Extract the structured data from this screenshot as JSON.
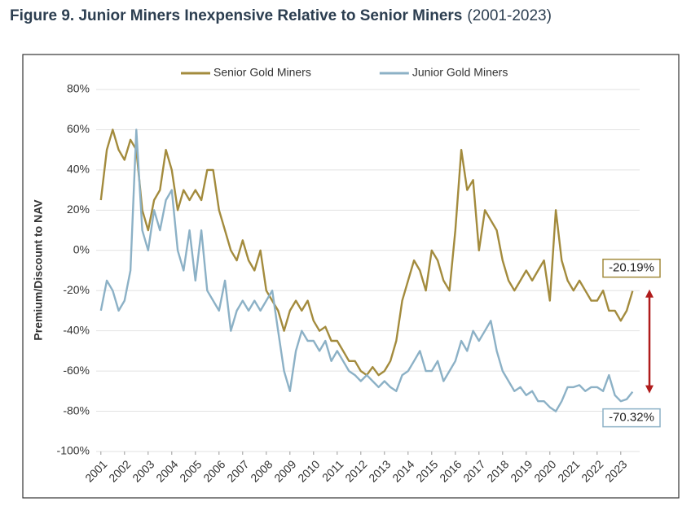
{
  "chart_data": {
    "type": "line",
    "title": "Figure 9. Junior Miners Inexpensive Relative to Senior Miners",
    "subtitle": "(2001-2023)",
    "y_label": "Premium/Discount to NAV",
    "x": [
      2001,
      2001.25,
      2001.5,
      2001.75,
      2002,
      2002.25,
      2002.5,
      2002.75,
      2003,
      2003.25,
      2003.5,
      2003.75,
      2004,
      2004.25,
      2004.5,
      2004.75,
      2005,
      2005.25,
      2005.5,
      2005.75,
      2006,
      2006.25,
      2006.5,
      2006.75,
      2007,
      2007.25,
      2007.5,
      2007.75,
      2008,
      2008.25,
      2008.5,
      2008.75,
      2009,
      2009.25,
      2009.5,
      2009.75,
      2010,
      2010.25,
      2010.5,
      2010.75,
      2011,
      2011.25,
      2011.5,
      2011.75,
      2012,
      2012.25,
      2012.5,
      2012.75,
      2013,
      2013.25,
      2013.5,
      2013.75,
      2014,
      2014.25,
      2014.5,
      2014.75,
      2015,
      2015.25,
      2015.5,
      2015.75,
      2016,
      2016.25,
      2016.5,
      2016.75,
      2017,
      2017.25,
      2017.5,
      2017.75,
      2018,
      2018.25,
      2018.5,
      2018.75,
      2019,
      2019.25,
      2019.5,
      2019.75,
      2020,
      2020.25,
      2020.5,
      2020.75,
      2021,
      2021.25,
      2021.5,
      2021.75,
      2022,
      2022.25,
      2022.5,
      2022.75,
      2023,
      2023.25,
      2023.5
    ],
    "series": [
      {
        "name": "Senior Gold Miners",
        "color": "#a38b3d",
        "values": [
          25,
          50,
          60,
          50,
          45,
          55,
          50,
          20,
          10,
          25,
          30,
          50,
          40,
          20,
          30,
          25,
          30,
          25,
          40,
          40,
          20,
          10,
          0,
          -5,
          5,
          -5,
          -10,
          0,
          -20,
          -25,
          -30,
          -40,
          -30,
          -25,
          -30,
          -25,
          -35,
          -40,
          -38,
          -45,
          -45,
          -50,
          -55,
          -55,
          -60,
          -62,
          -58,
          -62,
          -60,
          -55,
          -45,
          -25,
          -15,
          -5,
          -10,
          -20,
          0,
          -5,
          -15,
          -20,
          10,
          50,
          30,
          35,
          0,
          20,
          15,
          10,
          -5,
          -15,
          -20,
          -15,
          -10,
          -15,
          -10,
          -5,
          -25,
          20,
          -5,
          -15,
          -20,
          -15,
          -20,
          -25,
          -25,
          -20,
          -30,
          -30,
          -35,
          -30,
          -20.19
        ]
      },
      {
        "name": "Junior Gold Miners",
        "color": "#8cb1c6",
        "values": [
          -30,
          -15,
          -20,
          -30,
          -25,
          -10,
          60,
          10,
          0,
          20,
          10,
          25,
          30,
          0,
          -10,
          10,
          -15,
          10,
          -20,
          -25,
          -30,
          -15,
          -40,
          -30,
          -25,
          -30,
          -25,
          -30,
          -25,
          -20,
          -40,
          -60,
          -70,
          -50,
          -40,
          -45,
          -45,
          -50,
          -45,
          -55,
          -50,
          -55,
          -60,
          -62,
          -65,
          -62,
          -65,
          -68,
          -65,
          -68,
          -70,
          -62,
          -60,
          -55,
          -50,
          -60,
          -60,
          -55,
          -65,
          -60,
          -55,
          -45,
          -50,
          -40,
          -45,
          -40,
          -35,
          -50,
          -60,
          -65,
          -70,
          -68,
          -72,
          -70,
          -75,
          -75,
          -78,
          -80,
          -75,
          -68,
          -68,
          -67,
          -70,
          -68,
          -68,
          -70,
          -62,
          -72,
          -75,
          -74,
          -70.32
        ]
      }
    ],
    "annotations": [
      "-20.19%",
      "-70.32%"
    ],
    "xlim": [
      2000.8,
      2023.8
    ],
    "xticks": [
      2001,
      2002,
      2003,
      2004,
      2005,
      2006,
      2007,
      2008,
      2009,
      2010,
      2011,
      2012,
      2013,
      2014,
      2015,
      2016,
      2017,
      2018,
      2019,
      2020,
      2021,
      2022,
      2023
    ],
    "ylim": [
      -100,
      80
    ],
    "yticks": [
      {
        "value": -100,
        "label": "-100%"
      },
      {
        "value": -80,
        "label": "-80%"
      },
      {
        "value": -60,
        "label": "-60%"
      },
      {
        "value": -40,
        "label": "-40%"
      },
      {
        "value": -20,
        "label": "-20%"
      },
      {
        "value": 0,
        "label": "0%"
      },
      {
        "value": 20,
        "label": "20%"
      },
      {
        "value": 40,
        "label": "40%"
      },
      {
        "value": 60,
        "label": "60%"
      },
      {
        "value": 80,
        "label": "80%"
      }
    ],
    "grid": true,
    "legend": "top"
  }
}
